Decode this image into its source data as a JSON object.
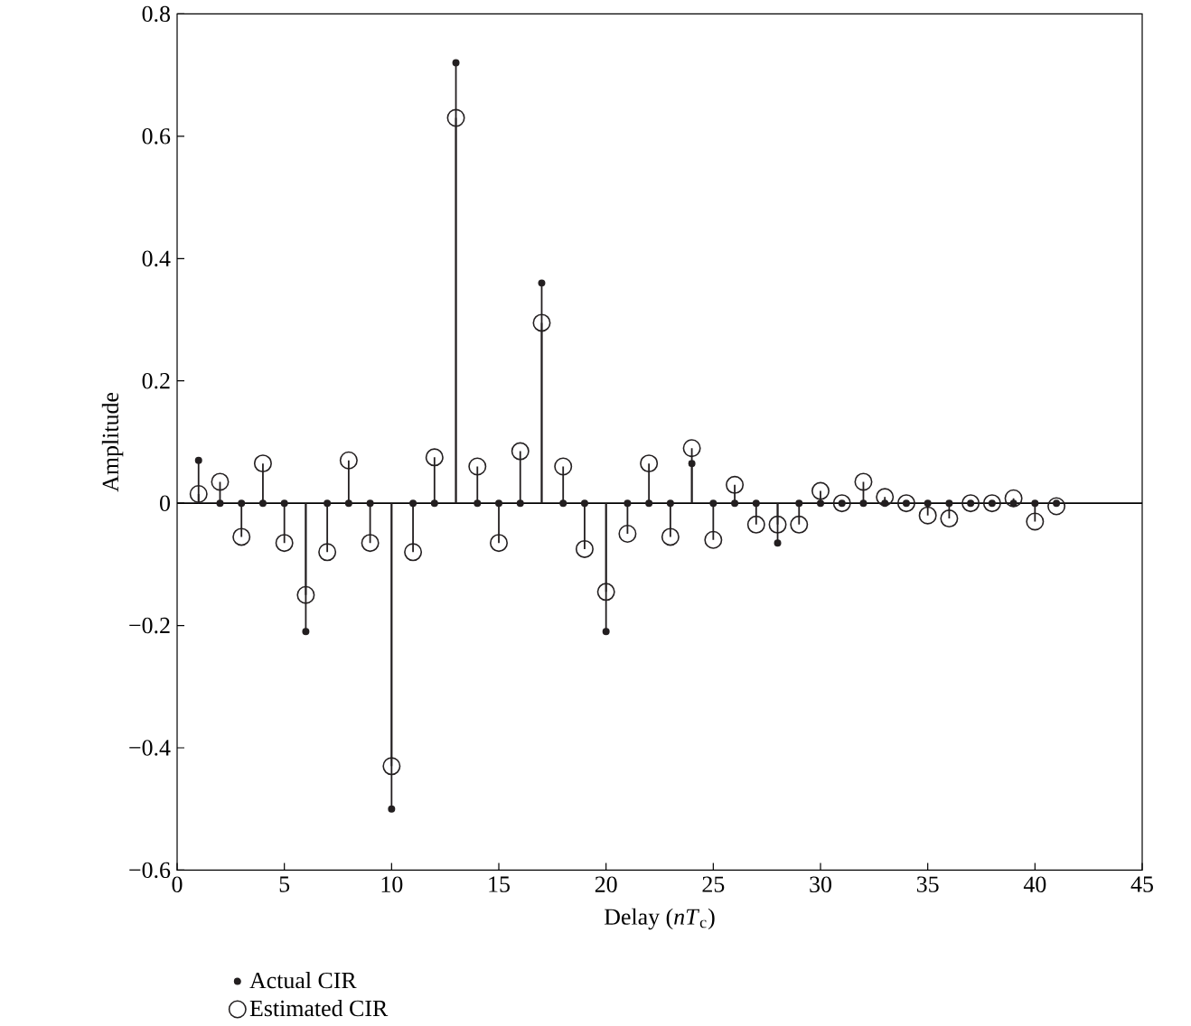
{
  "chart_data": {
    "type": "lollipop",
    "xlabel": "Delay (*nT*$_{c}$)",
    "ylabel": "Amplitude",
    "x": [
      1,
      2,
      3,
      4,
      5,
      6,
      7,
      8,
      9,
      10,
      11,
      12,
      13,
      14,
      15,
      16,
      17,
      18,
      19,
      20,
      21,
      22,
      23,
      24,
      25,
      26,
      27,
      28,
      29,
      30,
      31,
      32,
      33,
      34,
      35,
      36,
      37,
      38,
      39,
      40,
      41
    ],
    "series": [
      {
        "name": "Actual CIR",
        "color": "#231f20",
        "marker": "circle",
        "values": [
          0.07,
          0,
          0,
          0,
          0,
          -0.21,
          0,
          0,
          0,
          -0.5,
          0,
          0,
          0.72,
          0,
          0,
          0,
          0.36,
          0,
          0,
          -0.21,
          0,
          0,
          0,
          0.065,
          0,
          0,
          0,
          -0.065,
          0,
          0,
          0,
          0,
          0,
          0,
          0,
          0,
          0,
          0,
          0,
          0,
          0
        ]
      },
      {
        "name": "Estimated CIR",
        "color": "#231f20",
        "marker": "circle",
        "values": [
          0.015,
          0.035,
          -0.055,
          0.065,
          -0.065,
          -0.15,
          -0.08,
          0.07,
          -0.065,
          -0.43,
          -0.08,
          0.075,
          0.63,
          0.06,
          -0.065,
          0.085,
          0.295,
          0.06,
          -0.075,
          -0.145,
          -0.05,
          0.065,
          -0.055,
          0.09,
          -0.06,
          0.03,
          -0.035,
          -0.035,
          -0.035,
          0.02,
          0.0,
          0.035,
          0.01,
          0.0,
          -0.02,
          -0.025,
          0.0,
          0.0,
          0.008,
          -0.03,
          -0.005
        ]
      }
    ],
    "xlim": [
      0,
      45
    ],
    "xticks": [
      0,
      5,
      10,
      15,
      20,
      25,
      30,
      35,
      40,
      45
    ],
    "ylim": [
      -0.6,
      0.8
    ],
    "yticks": [
      {
        "value": -0.6,
        "label": "−0.6"
      },
      {
        "value": -0.4,
        "label": "−0.4"
      },
      {
        "value": -0.2,
        "label": "−0.2"
      },
      0,
      0.2,
      0.4,
      0.6,
      0.8
    ],
    "ref_lines": [
      {
        "axis": "y",
        "value": 0
      }
    ],
    "legend": "bottom left",
    "grid": false
  }
}
